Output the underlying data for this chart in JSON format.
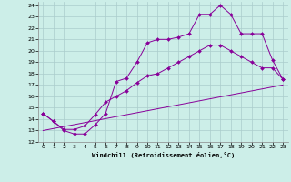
{
  "background_color": "#cceee8",
  "grid_color": "#aacccc",
  "line_color": "#880099",
  "xlabel": "Windchill (Refroidissement éolien,°C)",
  "xlim": [
    -0.5,
    23.5
  ],
  "ylim": [
    12,
    24.3
  ],
  "yticks": [
    12,
    13,
    14,
    15,
    16,
    17,
    18,
    19,
    20,
    21,
    22,
    23,
    24
  ],
  "xticks": [
    0,
    1,
    2,
    3,
    4,
    5,
    6,
    7,
    8,
    9,
    10,
    11,
    12,
    13,
    14,
    15,
    16,
    17,
    18,
    19,
    20,
    21,
    22,
    23
  ],
  "line1_x": [
    0,
    1,
    2,
    3,
    4,
    5,
    6,
    7,
    8,
    9,
    10,
    11,
    12,
    13,
    14,
    15,
    16,
    17,
    18,
    19,
    20,
    21,
    22,
    23
  ],
  "line1_y": [
    14.5,
    13.8,
    13.0,
    12.7,
    12.7,
    13.5,
    14.5,
    17.3,
    17.6,
    19.0,
    20.7,
    21.0,
    21.0,
    21.2,
    21.5,
    23.2,
    23.2,
    24.0,
    23.2,
    21.5,
    21.5,
    21.5,
    19.2,
    17.5
  ],
  "line2_x": [
    0,
    1,
    2,
    3,
    4,
    5,
    6,
    7,
    8,
    9,
    10,
    11,
    12,
    13,
    14,
    15,
    16,
    17,
    18,
    19,
    20,
    21,
    22,
    23
  ],
  "line2_y": [
    14.5,
    13.8,
    13.1,
    13.1,
    13.4,
    14.4,
    15.5,
    16.0,
    16.5,
    17.2,
    17.8,
    18.0,
    18.5,
    19.0,
    19.5,
    20.0,
    20.5,
    20.5,
    20.0,
    19.5,
    19.0,
    18.5,
    18.5,
    17.5
  ],
  "line3_x": [
    0,
    23
  ],
  "line3_y": [
    13.0,
    17.0
  ]
}
